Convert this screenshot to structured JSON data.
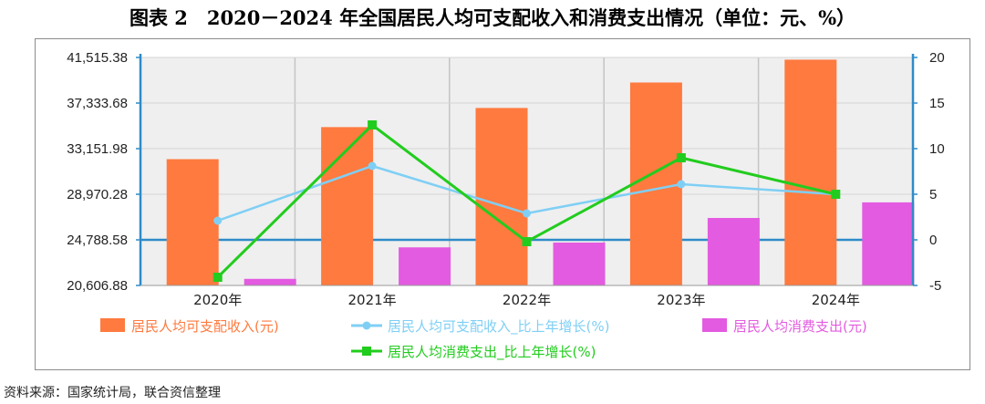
{
  "title": "图表 2　2020－2024 年全国居民人均可支配收入和消费支出情况（单位：元、%）",
  "source": "资料来源：国家统计局，联合资信整理",
  "colors": {
    "income_bar": "#FF7A3F",
    "consumption_bar": "#E35BE0",
    "income_growth_line": "#7FCFF5",
    "consumption_growth_line": "#22CC1E",
    "axis": "#2E8BC8",
    "plot_bg": "#EFEFEF"
  },
  "chart_data": {
    "type": "bar",
    "categories": [
      "2020年",
      "2021年",
      "2022年",
      "2023年",
      "2024年"
    ],
    "series": [
      {
        "name": "居民人均可支配收入(元)",
        "type": "bar",
        "axis": "left",
        "values": [
          32189,
          35128,
          36883,
          39218,
          41314
        ]
      },
      {
        "name": "居民人均消费支出(元)",
        "type": "bar",
        "axis": "left",
        "values": [
          21210,
          24100,
          24538,
          26796,
          28227
        ]
      },
      {
        "name": "居民人均可支配收入_比上年增长(%)",
        "type": "line",
        "axis": "right",
        "values": [
          2.1,
          8.1,
          2.9,
          6.1,
          5.0
        ]
      },
      {
        "name": "居民人均消费支出_比上年增长(%)",
        "type": "line",
        "axis": "right",
        "values": [
          -4.1,
          12.6,
          -0.2,
          9.0,
          5.0
        ]
      }
    ],
    "y_left": {
      "min": 20606.88,
      "max": 41515.38,
      "ticks": [
        "41,515.38",
        "37,333.68",
        "33,151.98",
        "28,970.28",
        "24,788.58",
        "20,606.88"
      ]
    },
    "y_right": {
      "min": -5,
      "max": 20,
      "ticks": [
        "20",
        "15",
        "10",
        "5",
        "0",
        "-5"
      ]
    },
    "grid": true,
    "legend_position": "bottom"
  }
}
